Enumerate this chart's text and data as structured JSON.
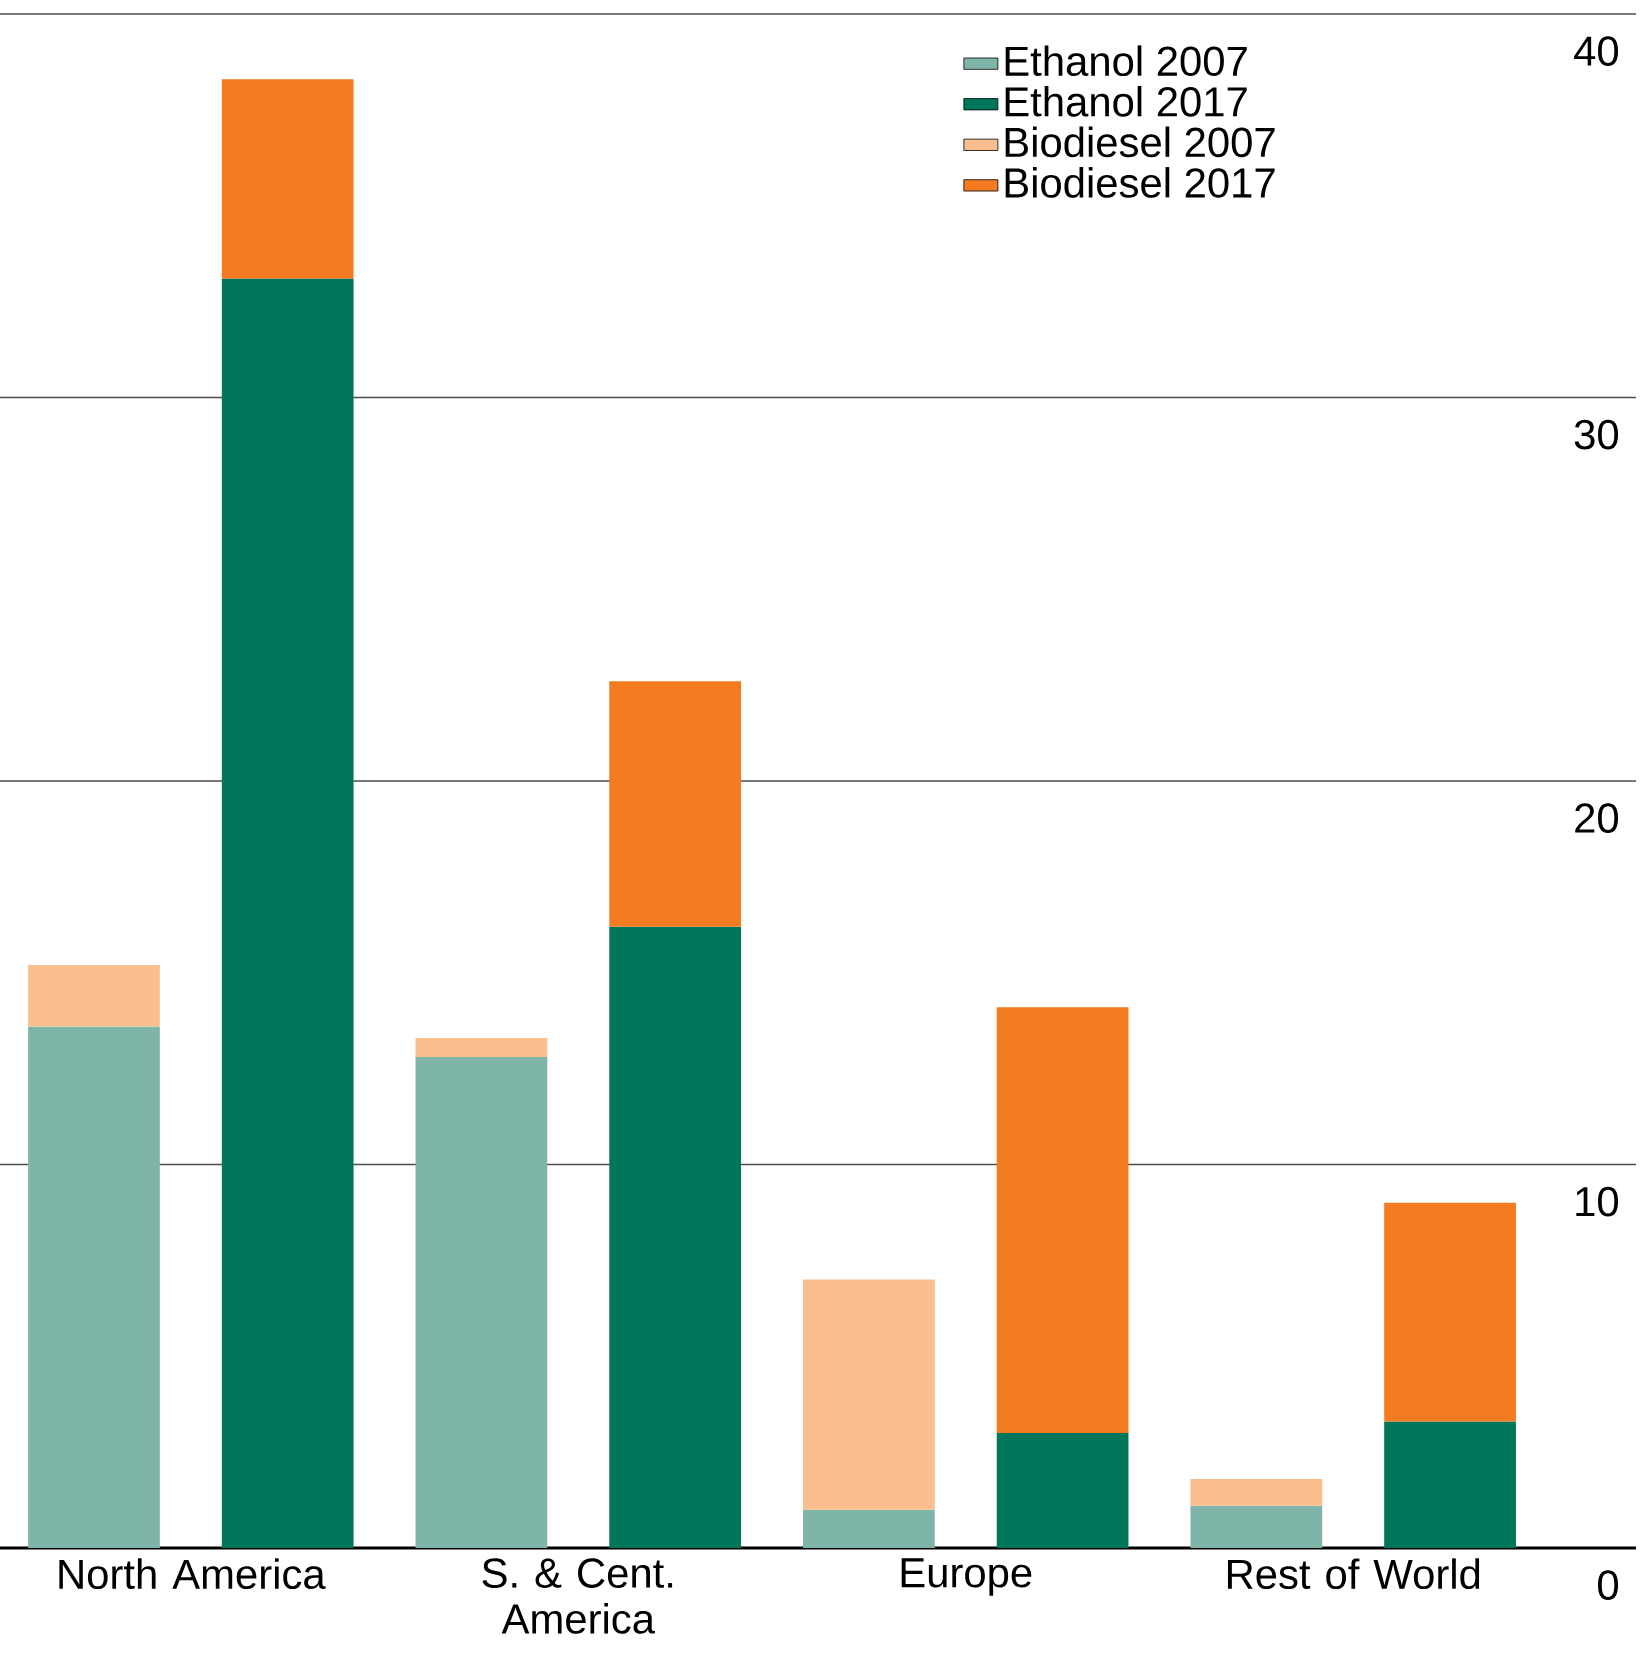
{
  "chart_data": {
    "type": "bar",
    "categories": [
      "North America",
      null,
      "S. & Cent. America",
      null,
      "Europe",
      null,
      "Rest of World",
      null
    ],
    "series": [
      {
        "name": "Ethanol 2007",
        "color": "#7fb5a8",
        "values": [
          13.6,
          null,
          12.8,
          null,
          1.0,
          null,
          1.1,
          null
        ]
      },
      {
        "name": "Ethanol 2017",
        "color": "#00775a",
        "values": [
          null,
          33.1,
          null,
          16.2,
          null,
          3.0,
          null,
          3.3
        ]
      },
      {
        "name": "Biodiesel 2007",
        "color": "#fbbf8f",
        "values": [
          1.6,
          null,
          0.5,
          null,
          6.0,
          null,
          0.7,
          null
        ]
      },
      {
        "name": "Biodiesel 2017",
        "color": "#f47b20",
        "values": [
          null,
          5.2,
          null,
          6.4,
          null,
          11.1,
          null,
          5.7
        ]
      }
    ],
    "stacked": true,
    "ylim": [
      0,
      40
    ],
    "yticks": [
      0,
      10,
      20,
      30,
      40
    ],
    "grid": "y",
    "legend": "top right"
  }
}
